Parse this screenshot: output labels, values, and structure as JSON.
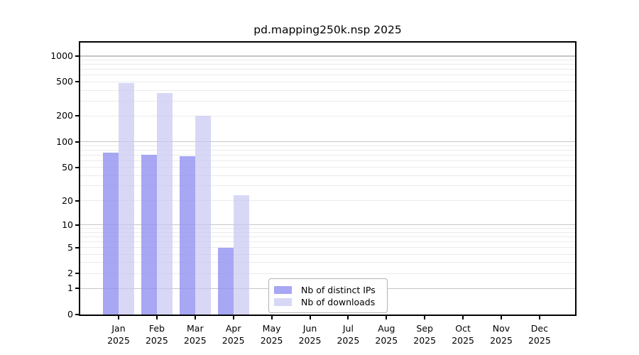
{
  "chart_data": {
    "type": "bar",
    "title": "pd.mapping250k.nsp 2025",
    "year": "2025",
    "months": [
      "Jan",
      "Feb",
      "Mar",
      "Apr",
      "May",
      "Jun",
      "Jul",
      "Aug",
      "Sep",
      "Oct",
      "Nov",
      "Dec"
    ],
    "categories": [
      "Jan 2025",
      "Feb 2025",
      "Mar 2025",
      "Apr 2025",
      "May 2025",
      "Jun 2025",
      "Jul 2025",
      "Aug 2025",
      "Sep 2025",
      "Oct 2025",
      "Nov 2025",
      "Dec 2025"
    ],
    "series": [
      {
        "name": "Nb of distinct IPs",
        "color": "rgba(145,145,241,0.8)",
        "values": [
          75,
          70,
          68,
          5,
          0,
          0,
          0,
          0,
          0,
          0,
          0,
          0
        ]
      },
      {
        "name": "Nb of downloads",
        "color": "rgba(199,199,242,0.7)",
        "values": [
          480,
          370,
          200,
          23,
          0,
          0,
          0,
          0,
          0,
          0,
          0,
          0
        ]
      }
    ],
    "yscale": "log1p",
    "ylim": [
      0,
      1430
    ],
    "y_ticks": [
      0,
      1,
      2,
      5,
      10,
      20,
      50,
      100,
      200,
      500,
      1000
    ],
    "y_grid_major": [
      1,
      10,
      100,
      1000
    ],
    "y_grid_minor": [
      2,
      3,
      4,
      5,
      6,
      7,
      8,
      9,
      20,
      30,
      40,
      50,
      60,
      70,
      80,
      90,
      200,
      300,
      400,
      500,
      600,
      700,
      800,
      900
    ],
    "grid": "horizontal",
    "legend_position": "inside-bottom-center",
    "colors": {
      "axis": "#000000",
      "grid_major": "#c6c6c6",
      "grid_minor": "#ebebeb",
      "background": "#ffffff"
    }
  }
}
